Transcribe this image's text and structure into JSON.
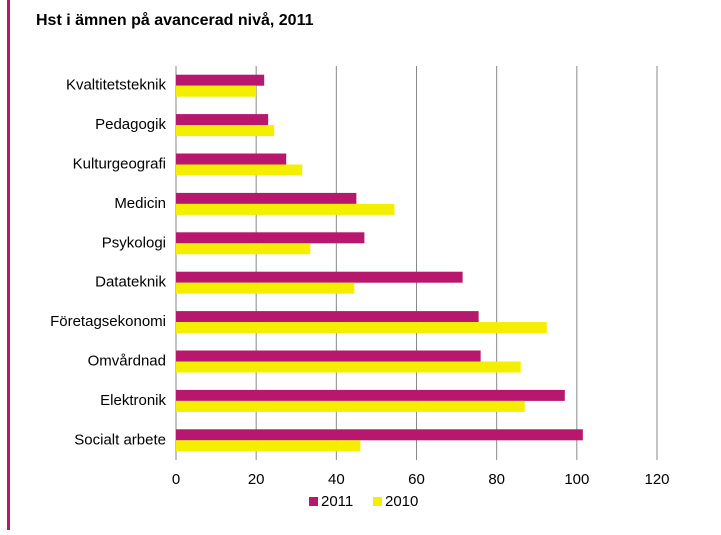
{
  "chart_data": {
    "type": "bar",
    "orientation": "horizontal",
    "title": "Hst i ämnen på avancerad nivå, 2011",
    "categories": [
      "Kvaltitetsteknik",
      "Pedagogik",
      "Kulturgeografi",
      "Medicin",
      "Psykologi",
      "Datateknik",
      "Företagsekonomi",
      "Omvårdnad",
      "Elektronik",
      "Socialt arbete"
    ],
    "series": [
      {
        "name": "2011",
        "color": "#b8176e",
        "values": [
          22,
          23,
          27.5,
          45,
          47,
          71.5,
          75.5,
          76,
          97,
          101.5
        ]
      },
      {
        "name": "2010",
        "color": "#f4ee00",
        "values": [
          20,
          24.5,
          31.5,
          54.5,
          33.5,
          44.5,
          92.5,
          86,
          87,
          46
        ]
      }
    ],
    "xlim": [
      0,
      120
    ],
    "xticks": [
      0,
      20,
      40,
      60,
      80,
      100,
      120
    ],
    "grid": true,
    "legend": "bottom"
  }
}
